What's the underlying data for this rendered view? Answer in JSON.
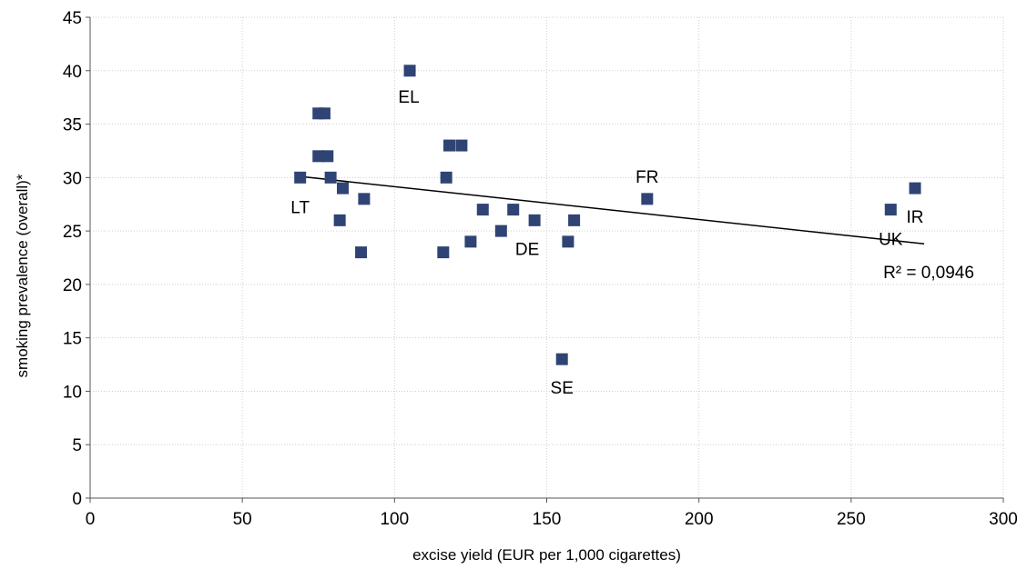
{
  "chart_data": {
    "type": "scatter",
    "title": "",
    "xlabel": "excise yield (EUR per 1,000 cigarettes)",
    "ylabel": "smoking prevalence (overall)*",
    "xlim": [
      0,
      300
    ],
    "ylim": [
      0,
      45
    ],
    "xticks": [
      0,
      50,
      100,
      150,
      200,
      250,
      300
    ],
    "yticks": [
      0,
      5,
      10,
      15,
      20,
      25,
      30,
      35,
      40,
      45
    ],
    "grid": true,
    "marker_color": "#2f4475",
    "points": [
      {
        "x": 69,
        "y": 30,
        "label": "LT"
      },
      {
        "x": 75,
        "y": 36,
        "label": ""
      },
      {
        "x": 77,
        "y": 36,
        "label": ""
      },
      {
        "x": 75,
        "y": 32,
        "label": ""
      },
      {
        "x": 78,
        "y": 32,
        "label": ""
      },
      {
        "x": 79,
        "y": 30,
        "label": ""
      },
      {
        "x": 83,
        "y": 29,
        "label": ""
      },
      {
        "x": 82,
        "y": 26,
        "label": ""
      },
      {
        "x": 90,
        "y": 28,
        "label": ""
      },
      {
        "x": 89,
        "y": 23,
        "label": ""
      },
      {
        "x": 105,
        "y": 40,
        "label": "EL"
      },
      {
        "x": 117,
        "y": 30,
        "label": ""
      },
      {
        "x": 118,
        "y": 33,
        "label": ""
      },
      {
        "x": 122,
        "y": 33,
        "label": ""
      },
      {
        "x": 116,
        "y": 23,
        "label": ""
      },
      {
        "x": 125,
        "y": 24,
        "label": ""
      },
      {
        "x": 129,
        "y": 27,
        "label": ""
      },
      {
        "x": 135,
        "y": 25,
        "label": ""
      },
      {
        "x": 139,
        "y": 27,
        "label": ""
      },
      {
        "x": 146,
        "y": 26,
        "label": "DE"
      },
      {
        "x": 155,
        "y": 13,
        "label": "SE"
      },
      {
        "x": 157,
        "y": 24,
        "label": ""
      },
      {
        "x": 159,
        "y": 26,
        "label": ""
      },
      {
        "x": 183,
        "y": 28,
        "label": "FR"
      },
      {
        "x": 263,
        "y": 27,
        "label": "UK"
      },
      {
        "x": 271,
        "y": 29,
        "label": "IR"
      }
    ],
    "trendline": {
      "x": [
        69,
        274
      ],
      "y": [
        30.1,
        23.8
      ]
    },
    "r_squared_label": "R² = 0,0946"
  }
}
